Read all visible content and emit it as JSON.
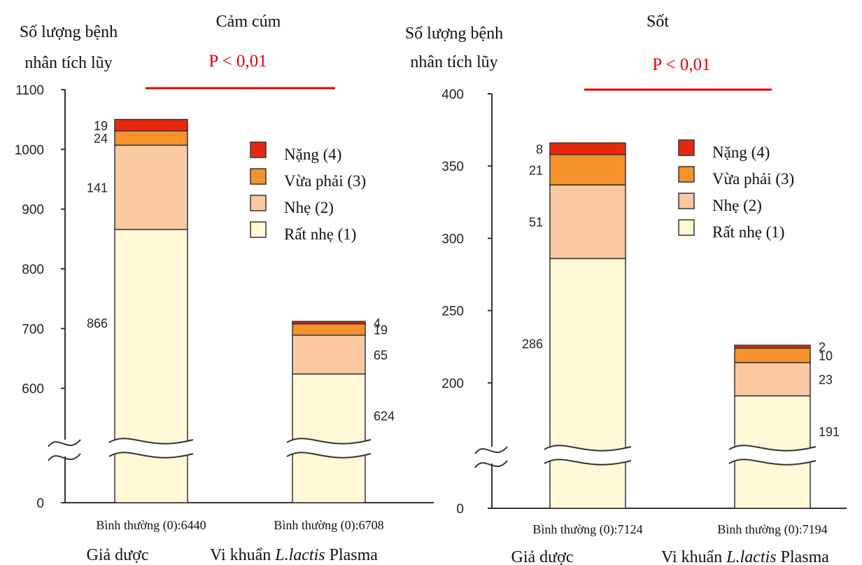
{
  "colors": {
    "severe": "#E8280E",
    "moderate": "#F5922C",
    "mild": "#FAC9A2",
    "very_mild": "#FFF9D7",
    "pvalue": "#E60000",
    "outline": "#333333"
  },
  "chart_data": [
    {
      "type": "bar",
      "stacked": true,
      "title": "Cảm cúm",
      "ylabel": [
        "Số lượng bệnh",
        "nhân tích lũy"
      ],
      "pvalue": "P < 0,01",
      "yticks": [
        0,
        600,
        700,
        800,
        900,
        1000,
        1100
      ],
      "ylim": [
        500,
        1100
      ],
      "axis_break": true,
      "categories": [
        "Giả dược",
        "Vi khuẩn L.lactis Plasma"
      ],
      "category_labels": [
        {
          "pre": "Giả dược",
          "italic": "",
          "post": ""
        },
        {
          "pre": "Vi khuẩn ",
          "italic": "L.lactis",
          "post": " Plasma"
        }
      ],
      "normal_counts": [
        "Bình thường (0):6440",
        "Bình thường (0):6708"
      ],
      "series": [
        {
          "name": "Rất nhẹ (1)",
          "key": "very_mild",
          "values": [
            866,
            624
          ]
        },
        {
          "name": "Nhẹ (2)",
          "key": "mild",
          "values": [
            141,
            65
          ]
        },
        {
          "name": "Vừa phải (3)",
          "key": "moderate",
          "values": [
            24,
            19
          ]
        },
        {
          "name": "Nặng (4)",
          "key": "severe",
          "values": [
            19,
            4
          ]
        }
      ],
      "legend": [
        "Nặng (4)",
        "Vừa phải (3)",
        "Nhẹ (2)",
        "Rất nhẹ (1)"
      ],
      "legend_position": "top-right"
    },
    {
      "type": "bar",
      "stacked": true,
      "title": "Sốt",
      "ylabel": [
        "Số lượng bệnh",
        "nhân tích lũy"
      ],
      "pvalue": "P < 0,01",
      "yticks": [
        0,
        200,
        250,
        300,
        350,
        400
      ],
      "ylim": [
        150,
        400
      ],
      "axis_break": true,
      "categories": [
        "Giả dược",
        "Vi khuẩn L.lactis Plasma"
      ],
      "category_labels": [
        {
          "pre": "Giả dược",
          "italic": "",
          "post": ""
        },
        {
          "pre": "Vi khuẩn ",
          "italic": "L.lactis",
          "post": " Plasma"
        }
      ],
      "normal_counts": [
        "Bình thường (0):7124",
        "Bình thường (0):7194"
      ],
      "series": [
        {
          "name": "Rất nhẹ (1)",
          "key": "very_mild",
          "values": [
            286,
            191
          ]
        },
        {
          "name": "Nhẹ (2)",
          "key": "mild",
          "values": [
            51,
            23
          ]
        },
        {
          "name": "Vừa phải (3)",
          "key": "moderate",
          "values": [
            21,
            10
          ]
        },
        {
          "name": "Nặng (4)",
          "key": "severe",
          "values": [
            8,
            2
          ]
        }
      ],
      "legend": [
        "Nặng (4)",
        "Vừa phải (3)",
        "Nhẹ (2)",
        "Rất nhẹ (1)"
      ],
      "legend_position": "top-right"
    }
  ]
}
